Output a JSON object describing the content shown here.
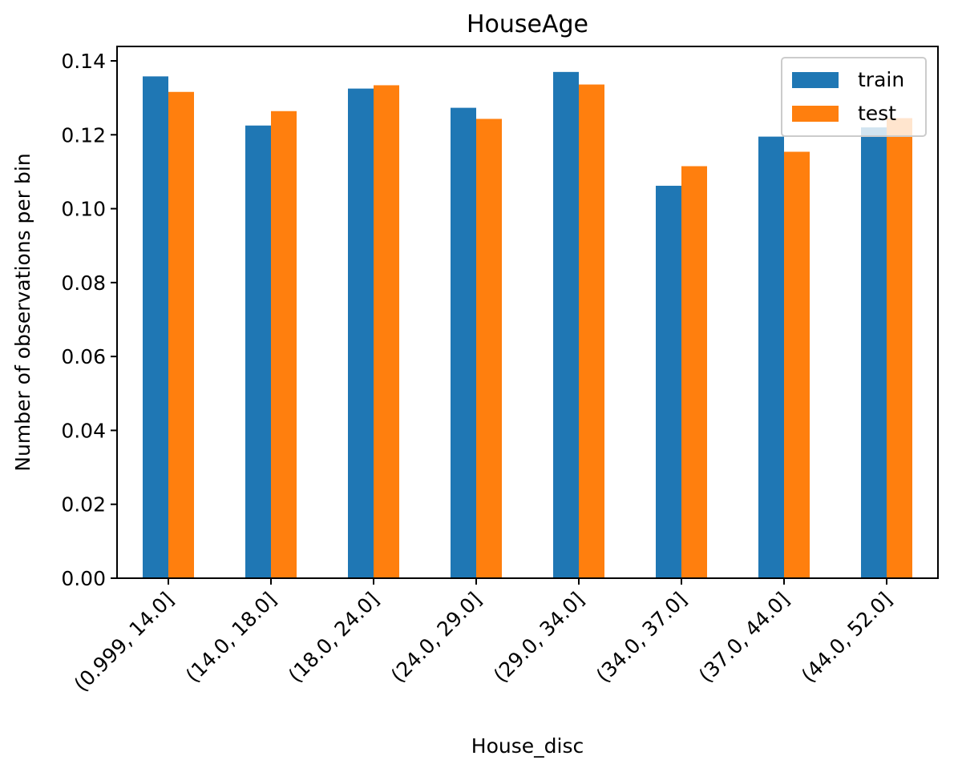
{
  "chart_data": {
    "type": "bar",
    "title": "HouseAge",
    "xlabel": "House_disc",
    "ylabel": "Number of observations per bin",
    "categories": [
      "(0.999, 14.0]",
      "(14.0, 18.0]",
      "(18.0, 24.0]",
      "(24.0, 29.0]",
      "(29.0, 34.0]",
      "(34.0, 37.0]",
      "(37.0, 44.0]",
      "(44.0, 52.0]"
    ],
    "series": [
      {
        "name": "train",
        "color": "#1f77b4",
        "values": [
          0.1358,
          0.1225,
          0.1325,
          0.1273,
          0.137,
          0.1062,
          0.1195,
          0.122
        ]
      },
      {
        "name": "test",
        "color": "#ff7f0e",
        "values": [
          0.1316,
          0.1264,
          0.1334,
          0.1243,
          0.1336,
          0.1115,
          0.1154,
          0.1245
        ]
      }
    ],
    "ylim": [
      0,
      0.14
    ],
    "yticks": [
      "0.00",
      "0.02",
      "0.04",
      "0.06",
      "0.08",
      "0.10",
      "0.12",
      "0.14"
    ],
    "grid": false,
    "legend_position": "top-right"
  }
}
